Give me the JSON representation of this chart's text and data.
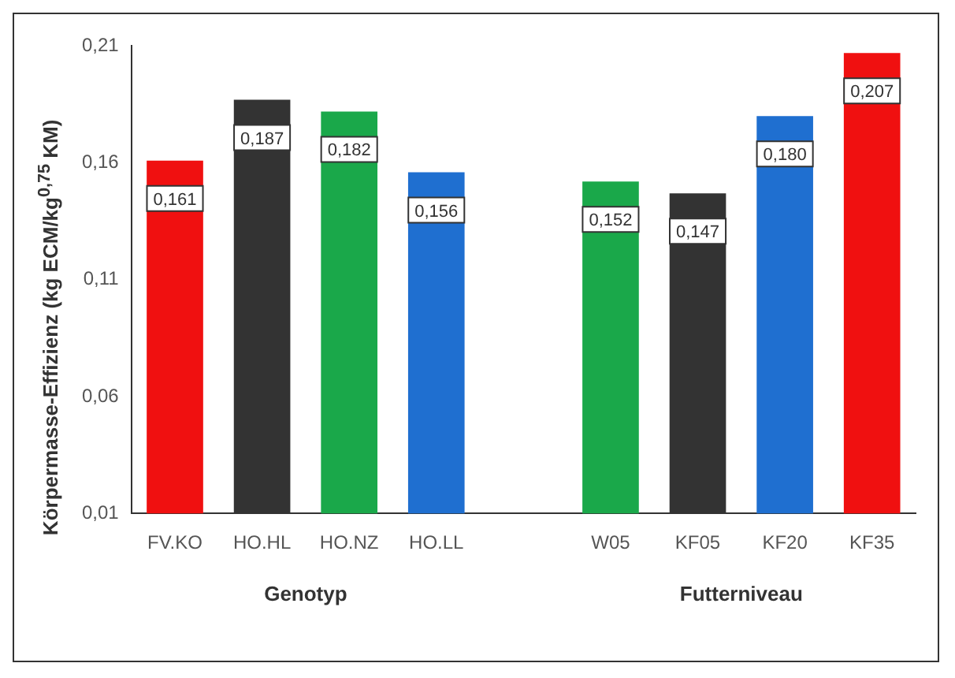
{
  "chart_data": {
    "type": "bar",
    "ylabel": "Körpermasse-Effizienz (kg ECM/kg$^{0,75}$ KM)",
    "categories": [
      "FV.KO",
      "HO.HL",
      "HO.NZ",
      "HO.LL",
      null,
      "W05",
      "KF05",
      "KF20",
      "KF35"
    ],
    "values": [
      0.161,
      0.187,
      0.182,
      0.156,
      null,
      0.152,
      0.147,
      0.18,
      0.207
    ],
    "value_labels": [
      "0,161",
      "0,187",
      "0,182",
      "0,156",
      null,
      "0,152",
      "0,147",
      "0,180",
      "0,207"
    ],
    "colors": [
      "#f01010",
      "#333333",
      "#1aa84a",
      "#1f6fd0",
      null,
      "#1aa84a",
      "#333333",
      "#1f6fd0",
      "#f01010"
    ],
    "ylim": [
      0.01,
      0.21
    ],
    "yticks": [
      {
        "value": 0.01,
        "label": "0,01"
      },
      {
        "value": 0.06,
        "label": "0,06"
      },
      {
        "value": 0.11,
        "label": "0,11"
      },
      {
        "value": 0.16,
        "label": "0,16"
      },
      {
        "value": 0.21,
        "label": "0,21"
      }
    ],
    "grid": false,
    "legend": false,
    "annotations": [
      "Genotyp",
      "Futterniveau"
    ]
  }
}
